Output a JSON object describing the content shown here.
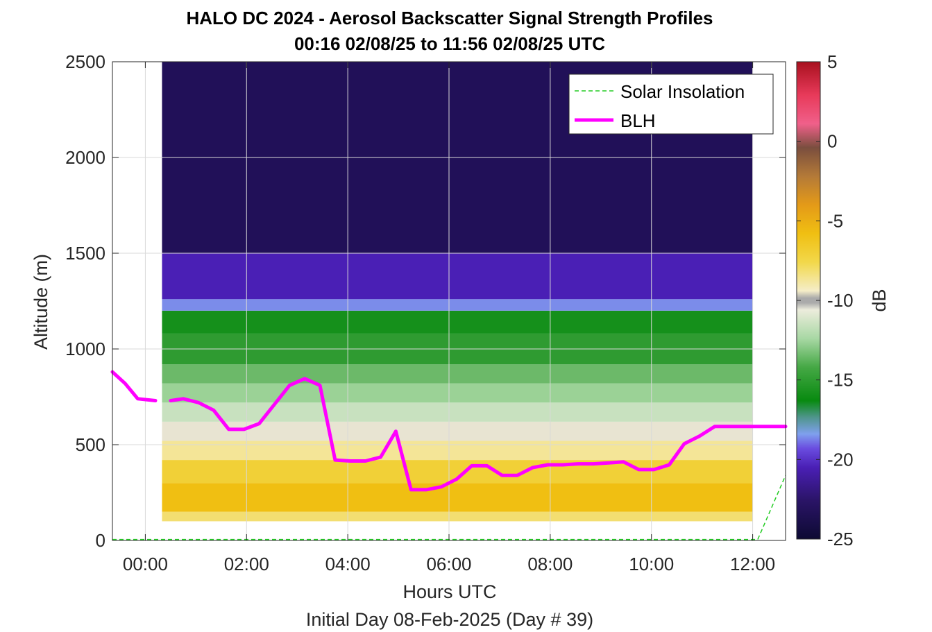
{
  "chart_data": {
    "type": "heatmap",
    "title": "HALO DC 2024 - Aerosol Backscatter Signal Strength Profiles",
    "subtitle": "00:16 02/08/25 to 11:56 02/08/25  UTC",
    "xlabel": "Hours UTC",
    "ylabel": "Altitude (m)",
    "footer": "Initial Day 08-Feb-2025 (Day # 39)",
    "xlim": [
      -0.65,
      12.65
    ],
    "ylim": [
      0,
      2500
    ],
    "x_ticks": [
      0,
      2,
      4,
      6,
      8,
      10,
      12
    ],
    "x_tick_labels": [
      "00:00",
      "02:00",
      "04:00",
      "06:00",
      "08:00",
      "10:00",
      "12:00"
    ],
    "y_ticks": [
      0,
      500,
      1000,
      1500,
      2000,
      2500
    ],
    "y_tick_labels": [
      "0",
      "500",
      "1000",
      "1500",
      "2000",
      "2500"
    ],
    "grid": true,
    "colorbar": {
      "label": "dB",
      "range": [
        -25,
        5
      ],
      "ticks": [
        5,
        0,
        -5,
        -10,
        -15,
        -20,
        -25
      ],
      "tick_labels": [
        "5",
        "0",
        "-5",
        "-10",
        "-15",
        "-20",
        "-25"
      ]
    },
    "legend": {
      "position": "top-right",
      "entries": [
        {
          "label": "Solar Insolation",
          "color": "#22cc22",
          "style": "dashed"
        },
        {
          "label": "BLH",
          "color": "#ff00ff",
          "style": "solid"
        }
      ]
    },
    "heatmap_x_range": [
      0.33,
      12.0
    ],
    "heatmap_y_range": [
      100,
      2500
    ],
    "heatmap_bands": [
      {
        "alt": [
          100,
          150
        ],
        "db": -8
      },
      {
        "alt": [
          150,
          300
        ],
        "db": -6
      },
      {
        "alt": [
          300,
          420
        ],
        "db": -7
      },
      {
        "alt": [
          420,
          520
        ],
        "db": -8.5
      },
      {
        "alt": [
          520,
          620
        ],
        "db": -10
      },
      {
        "alt": [
          620,
          720
        ],
        "db": -11.5
      },
      {
        "alt": [
          720,
          820
        ],
        "db": -12.5
      },
      {
        "alt": [
          820,
          920
        ],
        "db": -13.5
      },
      {
        "alt": [
          920,
          1080
        ],
        "db": -15
      },
      {
        "alt": [
          1080,
          1200
        ],
        "db": -16
      },
      {
        "alt": [
          1200,
          1260
        ],
        "db": -19.5
      },
      {
        "alt": [
          1260,
          1500
        ],
        "db": -21.5
      },
      {
        "alt": [
          1500,
          2500
        ],
        "db": -23.5
      }
    ],
    "series": [
      {
        "name": "BLH",
        "segments": [
          {
            "x": [
              -0.65,
              -0.4,
              -0.15,
              0.2
            ],
            "y": [
              880,
              820,
              740,
              730
            ]
          },
          {
            "x": [
              0.5,
              0.75,
              1.05,
              1.35,
              1.65,
              1.95,
              2.25,
              2.55,
              2.85,
              3.15,
              3.45,
              3.75,
              4.05,
              4.35,
              4.65,
              4.95,
              5.25,
              5.55,
              5.85,
              6.15,
              6.45,
              6.75,
              7.05,
              7.35,
              7.65,
              7.95,
              8.25,
              8.55,
              8.85,
              9.15,
              9.45,
              9.75,
              10.05,
              10.35,
              10.65,
              10.95,
              11.25,
              11.55,
              11.85,
              12.15,
              12.65
            ],
            "y": [
              730,
              740,
              720,
              680,
              580,
              580,
              610,
              710,
              810,
              845,
              810,
              420,
              415,
              415,
              435,
              570,
              265,
              265,
              280,
              320,
              390,
              390,
              340,
              340,
              380,
              395,
              395,
              400,
              400,
              405,
              410,
              370,
              370,
              395,
              505,
              545,
              595,
              595,
              595,
              595,
              595
            ]
          }
        ]
      },
      {
        "name": "Solar Insolation",
        "x": [
          -0.65,
          12.1,
          12.65
        ],
        "y": [
          5,
          5,
          340
        ]
      }
    ]
  }
}
